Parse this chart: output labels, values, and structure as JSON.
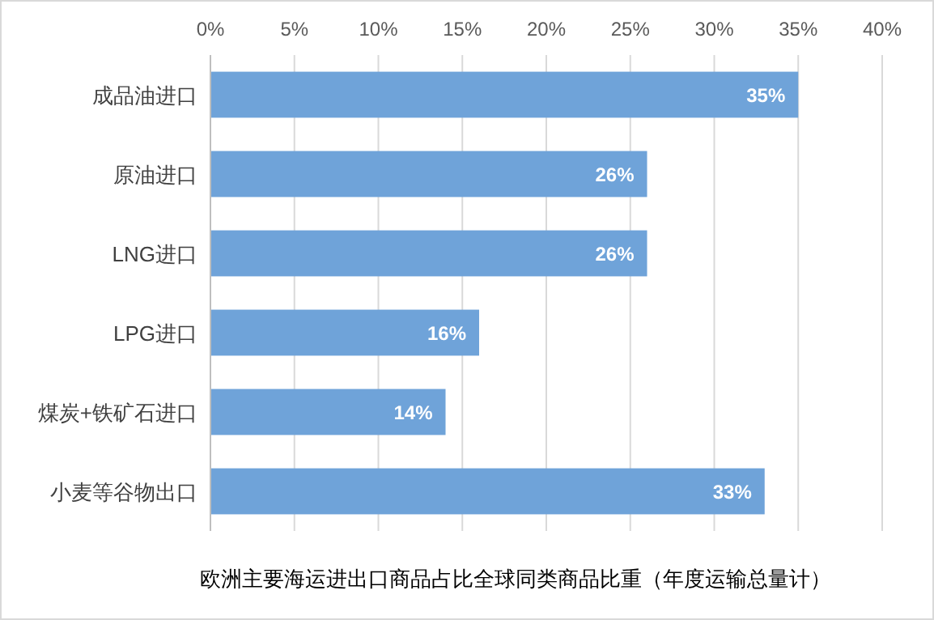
{
  "chart_data": {
    "type": "bar",
    "orientation": "horizontal",
    "title": "欧洲主要海运进出口商品占比全球同类商品比重（年度运输总量计）",
    "categories": [
      "成品油进口",
      "原油进口",
      "LNG进口",
      "LPG进口",
      "煤炭+铁矿石进口",
      "小麦等谷物出口"
    ],
    "values": [
      35,
      26,
      26,
      16,
      14,
      33
    ],
    "value_labels": [
      "35%",
      "26%",
      "26%",
      "16%",
      "14%",
      "33%"
    ],
    "color": "#6fa3d9",
    "xlim": [
      0,
      40
    ],
    "xticks": [
      {
        "value": 0,
        "label": "0%"
      },
      {
        "value": 5,
        "label": "5%"
      },
      {
        "value": 10,
        "label": "10%"
      },
      {
        "value": 15,
        "label": "15%"
      },
      {
        "value": 20,
        "label": "20%"
      },
      {
        "value": 25,
        "label": "25%"
      },
      {
        "value": 30,
        "label": "30%"
      },
      {
        "value": 35,
        "label": "35%"
      },
      {
        "value": 40,
        "label": "40%"
      }
    ],
    "grid": "x"
  }
}
